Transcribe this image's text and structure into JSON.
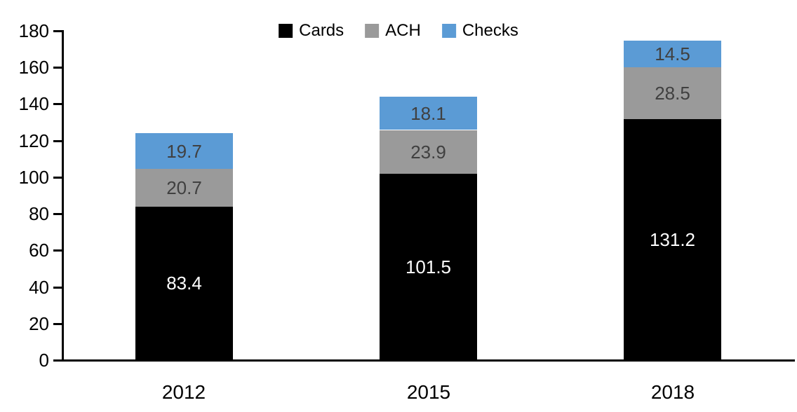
{
  "chart_data": {
    "type": "bar",
    "stacked": true,
    "title": "",
    "xlabel": "",
    "ylabel": "",
    "categories": [
      "2012",
      "2015",
      "2018"
    ],
    "series": [
      {
        "name": "Cards",
        "color": "#000000",
        "label_color": "#ffffff",
        "values": [
          83.4,
          101.5,
          131.2
        ]
      },
      {
        "name": "ACH",
        "color": "#9A9A9A",
        "label_color": "#404040",
        "values": [
          20.7,
          23.9,
          28.5
        ]
      },
      {
        "name": "Checks",
        "color": "#5B9BD5",
        "label_color": "#404040",
        "values": [
          19.7,
          18.1,
          14.5
        ]
      }
    ],
    "totals": [
      123.8,
      143.5,
      174.2
    ],
    "ylim": [
      0,
      180
    ],
    "yticks": [
      0,
      20,
      40,
      60,
      80,
      100,
      120,
      140,
      160,
      180
    ],
    "legend_position": "top-center",
    "grid": false,
    "data_labels": true,
    "axis_color": "#000000"
  }
}
